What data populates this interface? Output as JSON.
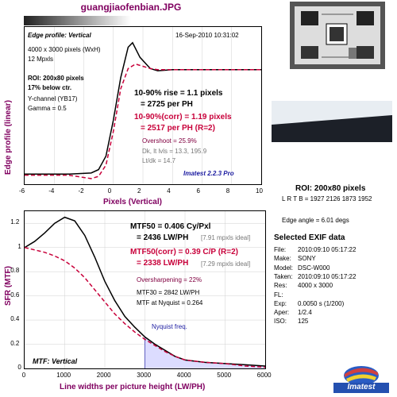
{
  "title": "guangjiaofenbian.JPG",
  "edge": {
    "header": "Edge profile: Vertical",
    "date": "16-Sep-2010 10:31:02",
    "info1": "4000 x 3000 pixels (WxH)",
    "info2": "12 Mpxls",
    "roi1": "ROI: 200x80 pixels",
    "roi2": "17% below ctr.",
    "channel": "Y-channel  (YB17)",
    "gamma": "Gamma = 0.5",
    "rise": "10-90% rise = 1.1 pixels",
    "rise_ph": "= 2725 per PH",
    "rise_corr": "10-90%(corr) = 1.19 pixels",
    "rise_corr_ph": "= 2517 per PH  (R=2)",
    "overshoot": "Overshoot = 25.9%",
    "dk": "Dk, lt lvls = 13.3, 195.9",
    "ltdk": "Lt/dk = 14.7",
    "brand": "Imatest 2.2.3 Pro",
    "ylabel": "Edge profile (linear)",
    "xlabel": "Pixels (Vertical)"
  },
  "mtf": {
    "mtf50": "MTF50 = 0.406 Cy/Pxl",
    "mtf50_lw": "= 2436 LW/PH",
    "ideal1": "[7.91 mpxls ideal]",
    "mtf50_corr": "MTF50(corr) = 0.39 C/P  (R=2)",
    "mtf50_corr_lw": "= 2338 LW/PH",
    "ideal2": "[7.29 mpxls ideal]",
    "oversharp": "Oversharpening = 22%",
    "mtf30": "MTF30 = 2842 LW/PH",
    "nyq_val": "MTF at Nyquist = 0.264",
    "nyq_label": "Nyquist freq.",
    "footer": "MTF: Vertical",
    "ylabel": "SFR (MTF)",
    "xlabel": "Line widths per picture height (LW/PH)"
  },
  "right": {
    "roi_title": "ROI: 200x80 pixels",
    "lrtb": "L R T B = 1927 2126  1873 1952",
    "edge_angle": "Edge angle = 6.01 degs",
    "exif_title": "Selected EXIF data",
    "exif": [
      {
        "k": "File:",
        "v": "2010:09:10 05:17:22"
      },
      {
        "k": "Make:",
        "v": "SONY"
      },
      {
        "k": "Model:",
        "v": "DSC-W000"
      },
      {
        "k": "Taken:",
        "v": "2010:09:10 05:17:22"
      },
      {
        "k": "Res:",
        "v": "4000 x 3000"
      },
      {
        "k": "FL:",
        "v": ""
      },
      {
        "k": "Exp:",
        "v": "0.0050 s  (1/200)"
      },
      {
        "k": "Aper:",
        "v": "1/2.4"
      },
      {
        "k": "ISO:",
        "v": "125"
      }
    ],
    "logo": "Imatest"
  },
  "chart_data": [
    {
      "type": "line",
      "xlabel": "Pixels (Vertical)",
      "ylabel": "Edge profile (linear)",
      "xlim": [
        -6,
        10
      ],
      "xticks": [
        "-6",
        "-4",
        "-2",
        "0",
        "2",
        "4",
        "6",
        "8",
        "10"
      ],
      "series": [
        {
          "color": "#000000",
          "x": [
            -6,
            -3,
            -1.5,
            -1,
            -0.5,
            0,
            0.5,
            1,
            1.3,
            1.8,
            2.5,
            3,
            4,
            5,
            6,
            10
          ],
          "y": [
            0.04,
            0.04,
            0.05,
            0.08,
            0.2,
            0.52,
            0.9,
            1.17,
            1.21,
            1.08,
            0.98,
            0.96,
            0.97,
            0.97,
            0.97,
            0.97
          ]
        },
        {
          "color": "#c8003a",
          "x": [
            -6,
            -3,
            -1.5,
            -1,
            -0.5,
            0,
            0.5,
            1,
            1.5,
            2,
            2.5,
            3,
            4,
            5,
            10
          ],
          "y": [
            0.03,
            0.03,
            0.0,
            0.02,
            0.12,
            0.42,
            0.8,
            0.98,
            1.02,
            1.0,
            0.98,
            0.97,
            0.97,
            0.97,
            0.97
          ]
        }
      ]
    },
    {
      "type": "line",
      "xlabel": "Line widths per picture height (LW/PH)",
      "ylabel": "SFR (MTF)",
      "xlim": [
        0,
        6000
      ],
      "ylim": [
        0,
        1.2
      ],
      "xticks": [
        "0",
        "1000",
        "2000",
        "3000",
        "4000",
        "5000",
        "6000"
      ],
      "yticks": [
        "0",
        "0.2",
        "0.4",
        "0.6",
        "0.8",
        "1",
        "1.2"
      ],
      "nyquist": 3000,
      "series": [
        {
          "color": "#000000",
          "x": [
            0,
            250,
            500,
            750,
            1000,
            1250,
            1500,
            1750,
            2000,
            2250,
            2500,
            2750,
            3000,
            3250,
            3500,
            3750,
            4000,
            4500,
            5000,
            5500,
            6000
          ],
          "y": [
            1.0,
            1.05,
            1.12,
            1.2,
            1.25,
            1.22,
            1.1,
            0.92,
            0.72,
            0.56,
            0.43,
            0.34,
            0.26,
            0.2,
            0.15,
            0.1,
            0.07,
            0.05,
            0.04,
            0.03,
            0.02
          ]
        },
        {
          "color": "#c8003a",
          "x": [
            0,
            250,
            500,
            750,
            1000,
            1250,
            1500,
            1750,
            2000,
            2250,
            2500,
            2750,
            3000,
            3250,
            3500,
            3750,
            4000,
            4500,
            5000,
            5500,
            6000
          ],
          "y": [
            1.0,
            0.98,
            0.96,
            0.93,
            0.89,
            0.83,
            0.75,
            0.65,
            0.55,
            0.45,
            0.37,
            0.3,
            0.24,
            0.19,
            0.14,
            0.1,
            0.07,
            0.05,
            0.04,
            0.02,
            0.01
          ]
        }
      ]
    }
  ]
}
